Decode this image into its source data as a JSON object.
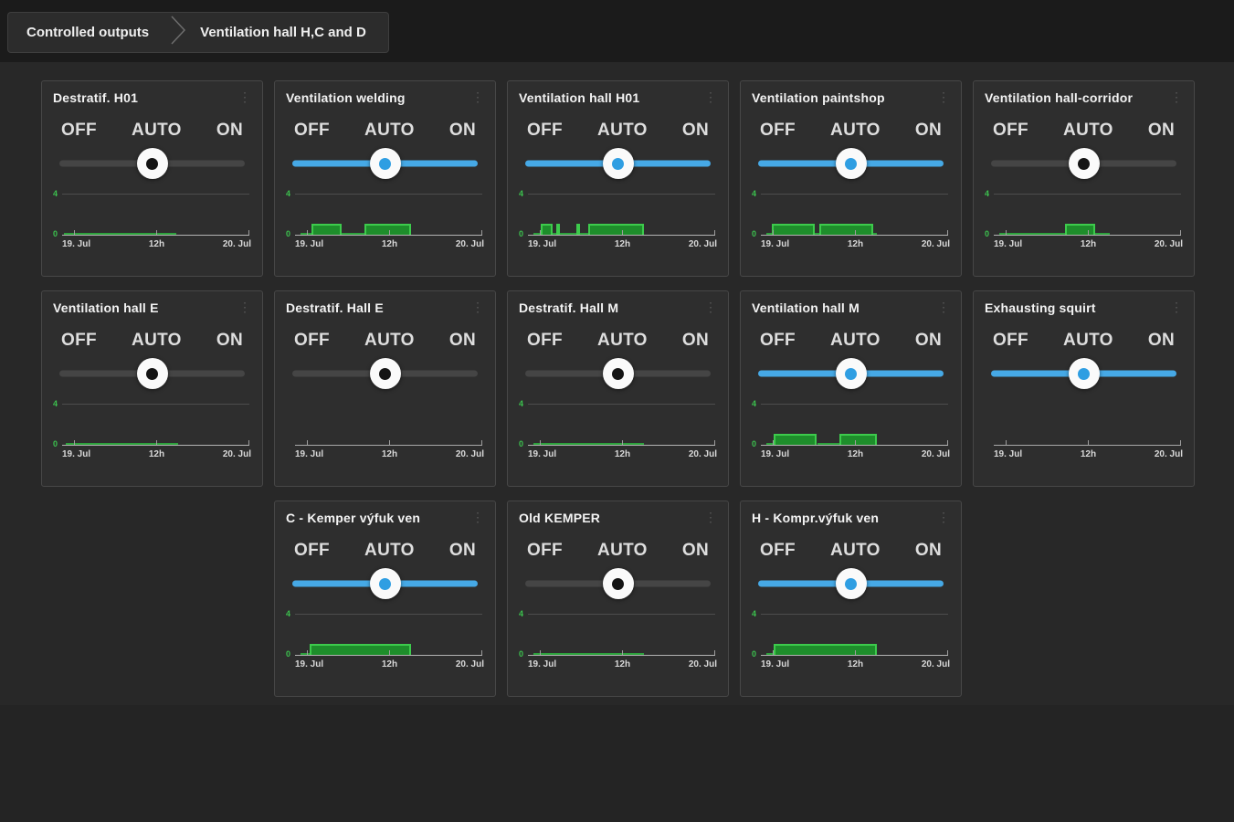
{
  "breadcrumb": {
    "items": [
      "Controlled outputs",
      "Ventilation hall H,C and D"
    ]
  },
  "slider_labels": [
    "OFF",
    "AUTO",
    "ON"
  ],
  "icons": {
    "card_menu_glyph": "⋮"
  },
  "chart_axis": {
    "y_top": "4",
    "y_bottom": "0",
    "x_ticks": [
      "19. Jul",
      "12h",
      "20. Jul"
    ]
  },
  "colors": {
    "slider_active": "#46a9e6",
    "slider_inactive": "#454545",
    "chart_green_fill": "#1e8e2b",
    "chart_green_line": "#3dcb4c",
    "card_bg": "#2e2e2e"
  },
  "cards": [
    {
      "title": "Destratif. H01",
      "slider": {
        "value": "AUTO",
        "active": false
      },
      "chart": {
        "has_data": true,
        "segments": [
          [
            1,
            61,
            0.1
          ]
        ]
      }
    },
    {
      "title": "Ventilation welding",
      "slider": {
        "value": "AUTO",
        "active": true
      },
      "chart": {
        "has_data": true,
        "segments": [
          [
            3,
            9,
            0.1
          ],
          [
            9,
            25,
            1
          ],
          [
            25,
            37,
            0.1
          ],
          [
            37,
            62,
            1
          ]
        ]
      }
    },
    {
      "title": "Ventilation hall H01",
      "slider": {
        "value": "AUTO",
        "active": true
      },
      "chart": {
        "has_data": true,
        "segments": [
          [
            3,
            7,
            0.1
          ],
          [
            7,
            13,
            1
          ],
          [
            13,
            15,
            0.1
          ],
          [
            15,
            17,
            1
          ],
          [
            17,
            26,
            0.1
          ],
          [
            26,
            28,
            1
          ],
          [
            28,
            32,
            0.1
          ],
          [
            32,
            62,
            1
          ]
        ]
      }
    },
    {
      "title": "Ventilation paintshop",
      "slider": {
        "value": "AUTO",
        "active": true
      },
      "chart": {
        "has_data": true,
        "segments": [
          [
            3,
            6,
            0.1
          ],
          [
            6,
            29,
            1
          ],
          [
            29,
            31,
            0.1
          ],
          [
            31,
            60,
            1
          ],
          [
            60,
            62,
            0.1
          ]
        ]
      }
    },
    {
      "title": "Ventilation hall-corridor",
      "slider": {
        "value": "AUTO",
        "active": false
      },
      "chart": {
        "has_data": true,
        "segments": [
          [
            3,
            38,
            0.1
          ],
          [
            38,
            54,
            1
          ],
          [
            54,
            62,
            0.1
          ]
        ]
      }
    },
    {
      "title": "Ventilation hall E",
      "slider": {
        "value": "AUTO",
        "active": false
      },
      "chart": {
        "has_data": true,
        "segments": [
          [
            2,
            62,
            0.1
          ]
        ]
      }
    },
    {
      "title": "Destratif. Hall E",
      "slider": {
        "value": "AUTO",
        "active": false
      },
      "chart": {
        "has_data": false,
        "segments": []
      }
    },
    {
      "title": "Destratif. Hall M",
      "slider": {
        "value": "AUTO",
        "active": false
      },
      "chart": {
        "has_data": true,
        "segments": [
          [
            3,
            62,
            0.1
          ]
        ]
      }
    },
    {
      "title": "Ventilation hall M",
      "slider": {
        "value": "AUTO",
        "active": true
      },
      "chart": {
        "has_data": true,
        "segments": [
          [
            3,
            7,
            0.1
          ],
          [
            7,
            30,
            1
          ],
          [
            30,
            42,
            0.1
          ],
          [
            42,
            62,
            1
          ]
        ]
      }
    },
    {
      "title": "Exhausting squirt",
      "slider": {
        "value": "AUTO",
        "active": true
      },
      "chart": {
        "has_data": false,
        "segments": []
      }
    },
    {
      "title": "C - Kemper výfuk ven",
      "slider": {
        "value": "AUTO",
        "active": true
      },
      "chart": {
        "has_data": true,
        "segments": [
          [
            3,
            8,
            0.1
          ],
          [
            8,
            62,
            1
          ]
        ]
      }
    },
    {
      "title": "Old KEMPER",
      "slider": {
        "value": "AUTO",
        "active": false
      },
      "chart": {
        "has_data": true,
        "segments": [
          [
            3,
            62,
            0.1
          ]
        ]
      }
    },
    {
      "title": "H - Kompr.výfuk ven",
      "slider": {
        "value": "AUTO",
        "active": true
      },
      "chart": {
        "has_data": true,
        "segments": [
          [
            3,
            7,
            0.1
          ],
          [
            7,
            62,
            1
          ]
        ]
      }
    }
  ]
}
